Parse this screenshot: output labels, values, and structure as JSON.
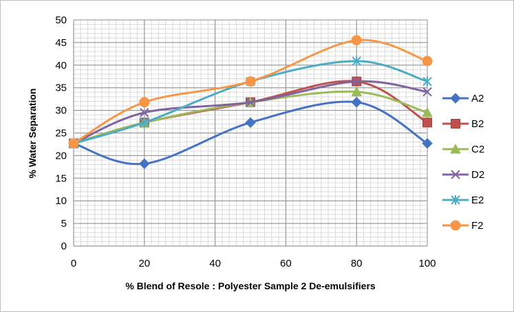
{
  "chart_data": {
    "type": "line",
    "xlabel": "% Blend of Resole : Polyester Sample 2 De-emulsifiers",
    "ylabel": "% Water Separation",
    "x": [
      0,
      20,
      50,
      80,
      100
    ],
    "xticks": [
      0,
      20,
      40,
      60,
      80,
      100
    ],
    "xlim": [
      0,
      100
    ],
    "yticks": [
      0,
      5,
      10,
      15,
      20,
      25,
      30,
      35,
      40,
      45,
      50
    ],
    "ylim": [
      0,
      50
    ],
    "grid": true,
    "minor_grid": true,
    "smooth": true,
    "legend_position": "right",
    "series": [
      {
        "name": "A2",
        "values": [
          22.7,
          18.2,
          27.3,
          31.8,
          22.7
        ],
        "color": "#4472c4",
        "marker": "diamond"
      },
      {
        "name": "B2",
        "values": [
          22.7,
          27.3,
          31.8,
          36.4,
          27.3
        ],
        "color": "#c0504d",
        "marker": "square"
      },
      {
        "name": "C2",
        "values": [
          22.7,
          27.3,
          31.8,
          34.1,
          29.5
        ],
        "color": "#9bbb59",
        "marker": "triangle"
      },
      {
        "name": "D2",
        "values": [
          22.7,
          29.5,
          31.8,
          36.4,
          34.1
        ],
        "color": "#8064a2",
        "marker": "x"
      },
      {
        "name": "E2",
        "values": [
          22.7,
          27.3,
          36.4,
          40.9,
          36.4
        ],
        "color": "#4bacc6",
        "marker": "star"
      },
      {
        "name": "F2",
        "values": [
          22.7,
          31.8,
          36.4,
          45.5,
          40.9
        ],
        "color": "#f79646",
        "marker": "circle"
      }
    ]
  }
}
